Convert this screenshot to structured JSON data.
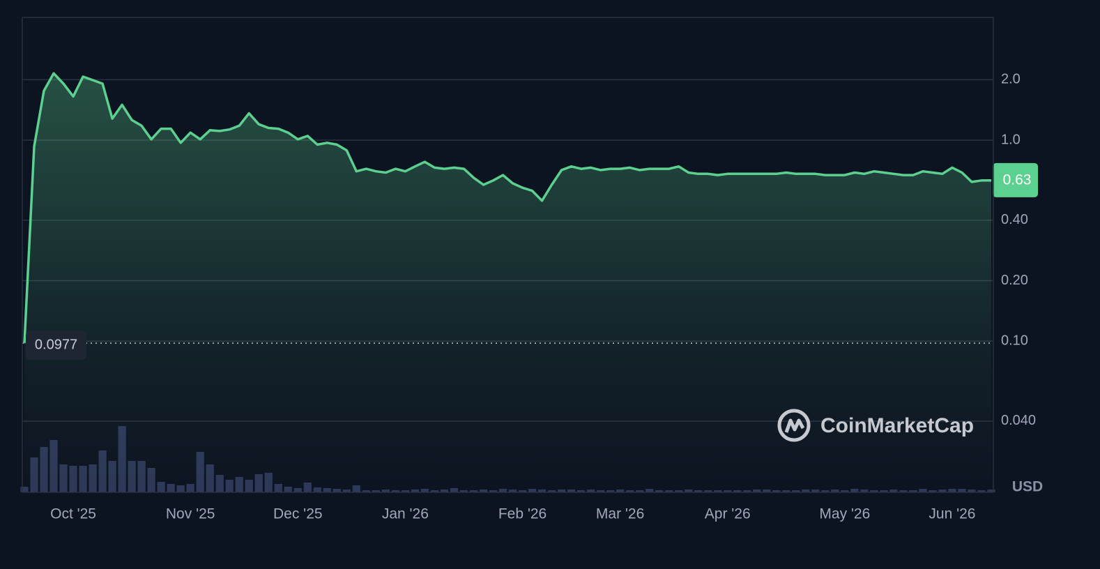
{
  "chart_data": {
    "type": "line",
    "categories": [
      null,
      null,
      null,
      null,
      null,
      "Oct '25",
      null,
      null,
      null,
      null,
      null,
      null,
      null,
      null,
      null,
      null,
      null,
      "Nov '25",
      null,
      null,
      null,
      null,
      null,
      null,
      null,
      null,
      null,
      null,
      "Dec '25",
      null,
      null,
      null,
      null,
      null,
      null,
      null,
      null,
      null,
      null,
      "Jan '26",
      null,
      null,
      null,
      null,
      null,
      null,
      null,
      null,
      null,
      null,
      null,
      "Feb '26",
      null,
      null,
      null,
      null,
      null,
      null,
      null,
      null,
      null,
      "Mar '26",
      null,
      null,
      null,
      null,
      null,
      null,
      null,
      null,
      null,
      null,
      "Apr '26",
      null,
      null,
      null,
      null,
      null,
      null,
      null,
      null,
      null,
      null,
      null,
      "May '26",
      null,
      null,
      null,
      null,
      null,
      null,
      null,
      null,
      null,
      null,
      "Jun '26",
      null,
      null,
      null,
      null
    ],
    "values": [
      0.0977,
      0.93,
      1.76,
      2.15,
      1.91,
      1.65,
      2.07,
      1.99,
      1.91,
      1.28,
      1.5,
      1.26,
      1.18,
      1.01,
      1.14,
      1.14,
      0.97,
      1.09,
      1.01,
      1.12,
      1.11,
      1.13,
      1.18,
      1.36,
      1.2,
      1.15,
      1.14,
      1.09,
      1.01,
      1.05,
      0.95,
      0.97,
      0.95,
      0.89,
      0.7,
      0.72,
      0.7,
      0.69,
      0.72,
      0.7,
      0.74,
      0.78,
      0.73,
      0.72,
      0.73,
      0.72,
      0.65,
      0.6,
      0.63,
      0.67,
      0.61,
      0.58,
      0.56,
      0.5,
      0.6,
      0.71,
      0.74,
      0.72,
      0.73,
      0.71,
      0.72,
      0.72,
      0.73,
      0.71,
      0.72,
      0.72,
      0.72,
      0.74,
      0.69,
      0.68,
      0.68,
      0.67,
      0.68,
      0.68,
      0.68,
      0.68,
      0.68,
      0.68,
      0.69,
      0.68,
      0.68,
      0.68,
      0.67,
      0.67,
      0.67,
      0.69,
      0.68,
      0.7,
      0.69,
      0.68,
      0.67,
      0.67,
      0.7,
      0.69,
      0.68,
      0.73,
      0.69,
      0.62,
      0.63,
      0.63
    ],
    "color": "#5cd08f",
    "volume": [
      8,
      50,
      65,
      75,
      40,
      38,
      38,
      40,
      60,
      45,
      95,
      45,
      45,
      35,
      15,
      12,
      10,
      12,
      58,
      40,
      25,
      18,
      22,
      18,
      26,
      28,
      12,
      8,
      6,
      14,
      7,
      6,
      5,
      4,
      10,
      3,
      3,
      4,
      3,
      3,
      4,
      5,
      3,
      4,
      6,
      3,
      3,
      4,
      3,
      5,
      4,
      3,
      5,
      4,
      3,
      4,
      4,
      3,
      4,
      3,
      3,
      4,
      3,
      3,
      5,
      3,
      3,
      3,
      4,
      3,
      3,
      3,
      3,
      3,
      3,
      4,
      4,
      3,
      3,
      3,
      4,
      4,
      3,
      4,
      3,
      5,
      4,
      3,
      3,
      4,
      3,
      3,
      5,
      3,
      4,
      5,
      5,
      4,
      3,
      4
    ],
    "volume_color": "#2e3858",
    "y2lim": [
      0,
      100
    ],
    "ylim": [
      0.0177,
      4.08
    ],
    "log_scale": true,
    "yticks": [
      {
        "value": 2,
        "label": "2.0"
      },
      {
        "value": 1,
        "label": "1.0"
      },
      {
        "value": 0.4,
        "label": "0.40"
      },
      {
        "value": 0.2,
        "label": "0.20"
      },
      {
        "value": 0.1,
        "label": "0.10"
      },
      {
        "value": 0.04,
        "label": "0.040"
      }
    ],
    "grid": true,
    "start_value": 0.0977,
    "last_value": 0.63,
    "currency": "USD",
    "watermark": "CoinMarketCap"
  }
}
